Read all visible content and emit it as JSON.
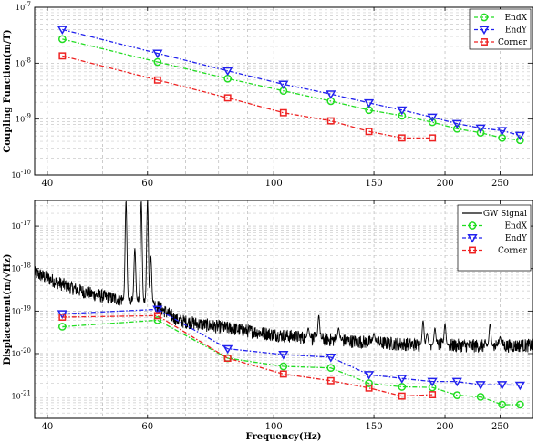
{
  "chart_data": [
    {
      "type": "line",
      "ylabel": "Coupling Function(m/T)",
      "xlabel": "",
      "xscale": "log",
      "yscale": "log",
      "xlim": [
        38,
        285
      ],
      "ylim": [
        1e-10,
        1e-07
      ],
      "xticks": [
        40,
        60,
        100,
        150,
        200,
        250
      ],
      "xtick_labels": [
        "40",
        "60",
        "100",
        "150",
        "200",
        "250"
      ],
      "yticks": [
        1e-10,
        1e-09,
        1e-08,
        1e-07
      ],
      "ytick_labels": [
        [
          "10",
          "-10"
        ],
        [
          "10",
          "-9"
        ],
        [
          "10",
          "-8"
        ],
        [
          "10",
          "-7"
        ]
      ],
      "grid": true,
      "legend_position": "top-right",
      "series": [
        {
          "name": "EndX",
          "color": "#22dd22",
          "marker": "circle",
          "x": [
            42.5,
            62.5,
            83,
            104,
            126,
            147,
            168,
            190,
            210,
            231,
            252,
            271
          ],
          "y": [
            2.7e-08,
            1.05e-08,
            5.3e-09,
            3.2e-09,
            2.1e-09,
            1.45e-09,
            1.15e-09,
            8.8e-10,
            6.7e-10,
            5.7e-10,
            4.6e-10,
            4.2e-10
          ]
        },
        {
          "name": "EndY",
          "color": "#2222ee",
          "marker": "triangle-down",
          "x": [
            42.5,
            62.5,
            83,
            104,
            126,
            147,
            168,
            190,
            210,
            231,
            252,
            271
          ],
          "y": [
            4e-08,
            1.5e-08,
            7.3e-09,
            4.2e-09,
            2.8e-09,
            1.95e-09,
            1.45e-09,
            1.08e-09,
            8.3e-10,
            6.9e-10,
            6.2e-10,
            5.1e-10
          ]
        },
        {
          "name": "Corner",
          "color": "#ee2222",
          "marker": "square",
          "x": [
            42.5,
            62.5,
            83,
            104,
            126,
            147,
            168,
            190
          ],
          "y": [
            1.35e-08,
            5e-09,
            2.4e-09,
            1.3e-09,
            9.3e-10,
            6e-10,
            4.6e-10,
            4.6e-10
          ]
        }
      ]
    },
    {
      "type": "line",
      "ylabel": "Displacement(m/√Hz)",
      "xlabel": "Frequency(Hz)",
      "xscale": "log",
      "yscale": "log",
      "xlim": [
        38,
        285
      ],
      "ylim": [
        3e-22,
        4e-17
      ],
      "xticks": [
        40,
        60,
        100,
        150,
        200,
        250
      ],
      "xtick_labels": [
        "40",
        "60",
        "100",
        "150",
        "200",
        "250"
      ],
      "yticks": [
        1e-21,
        1e-20,
        1e-19,
        1e-18,
        1e-17
      ],
      "ytick_labels": [
        [
          "10",
          "-21"
        ],
        [
          "10",
          "-20"
        ],
        [
          "10",
          "-19"
        ],
        [
          "10",
          "-18"
        ],
        [
          "10",
          "-17"
        ]
      ],
      "grid": true,
      "legend_position": "top-right",
      "gw_signal": {
        "name": "GW Signal",
        "color": "#000000",
        "baseline": [
          [
            38,
            8e-19
          ],
          [
            40,
            6e-19
          ],
          [
            42,
            4.5e-19
          ],
          [
            45,
            3.2e-19
          ],
          [
            48,
            2.5e-19
          ],
          [
            52,
            2e-19
          ],
          [
            55,
            1.8e-19
          ],
          [
            58,
            1.6e-19
          ],
          [
            62,
            1.4e-19
          ],
          [
            68,
            6e-20
          ],
          [
            75,
            4.8e-20
          ],
          [
            85,
            3.8e-20
          ],
          [
            100,
            2.8e-20
          ],
          [
            120,
            2.2e-20
          ],
          [
            150,
            1.8e-20
          ],
          [
            180,
            1.6e-20
          ],
          [
            210,
            1.55e-20
          ],
          [
            240,
            1.5e-20
          ],
          [
            285,
            1.55e-20
          ]
        ],
        "peaks": [
          [
            55,
            4e-17
          ],
          [
            58.5,
            4e-17
          ],
          [
            60,
            4e-17
          ],
          [
            57,
            3e-18
          ],
          [
            60.8,
            2e-18
          ],
          [
            115,
            4e-20
          ],
          [
            120,
            8e-20
          ],
          [
            130,
            4e-20
          ],
          [
            150,
            3e-20
          ],
          [
            183,
            6e-20
          ],
          [
            186,
            3e-20
          ],
          [
            192,
            4e-20
          ],
          [
            200,
            5e-20
          ],
          [
            240,
            5e-20
          ],
          [
            250,
            2.5e-20
          ]
        ]
      },
      "series": [
        {
          "name": "EndX",
          "color": "#22dd22",
          "marker": "circle",
          "x": [
            42.5,
            62.5,
            83,
            104,
            126,
            147,
            168,
            190,
            210,
            231,
            252,
            271
          ],
          "y": [
            4.3e-20,
            6.1e-20,
            7.8e-21,
            5e-21,
            4.6e-21,
            2e-21,
            1.65e-21,
            1.6e-21,
            1.05e-21,
            9.6e-22,
            6.3e-22,
            6.3e-22
          ]
        },
        {
          "name": "EndY",
          "color": "#2222ee",
          "marker": "triangle-down",
          "x": [
            42.5,
            62.5,
            83,
            104,
            126,
            147,
            168,
            190,
            210,
            231,
            252,
            271
          ],
          "y": [
            8.6e-20,
            1.1e-19,
            1.3e-20,
            9.5e-21,
            8.2e-21,
            3.2e-21,
            2.6e-21,
            2.2e-21,
            2.2e-21,
            1.85e-21,
            1.85e-21,
            1.8e-21
          ]
        },
        {
          "name": "Corner",
          "color": "#ee2222",
          "marker": "square",
          "x": [
            42.5,
            62.5,
            83,
            104,
            126,
            147,
            168,
            190
          ],
          "y": [
            7.2e-20,
            7.8e-20,
            7.8e-21,
            3.3e-21,
            2.3e-21,
            1.55e-21,
            1e-21,
            1.08e-21
          ]
        }
      ]
    }
  ]
}
